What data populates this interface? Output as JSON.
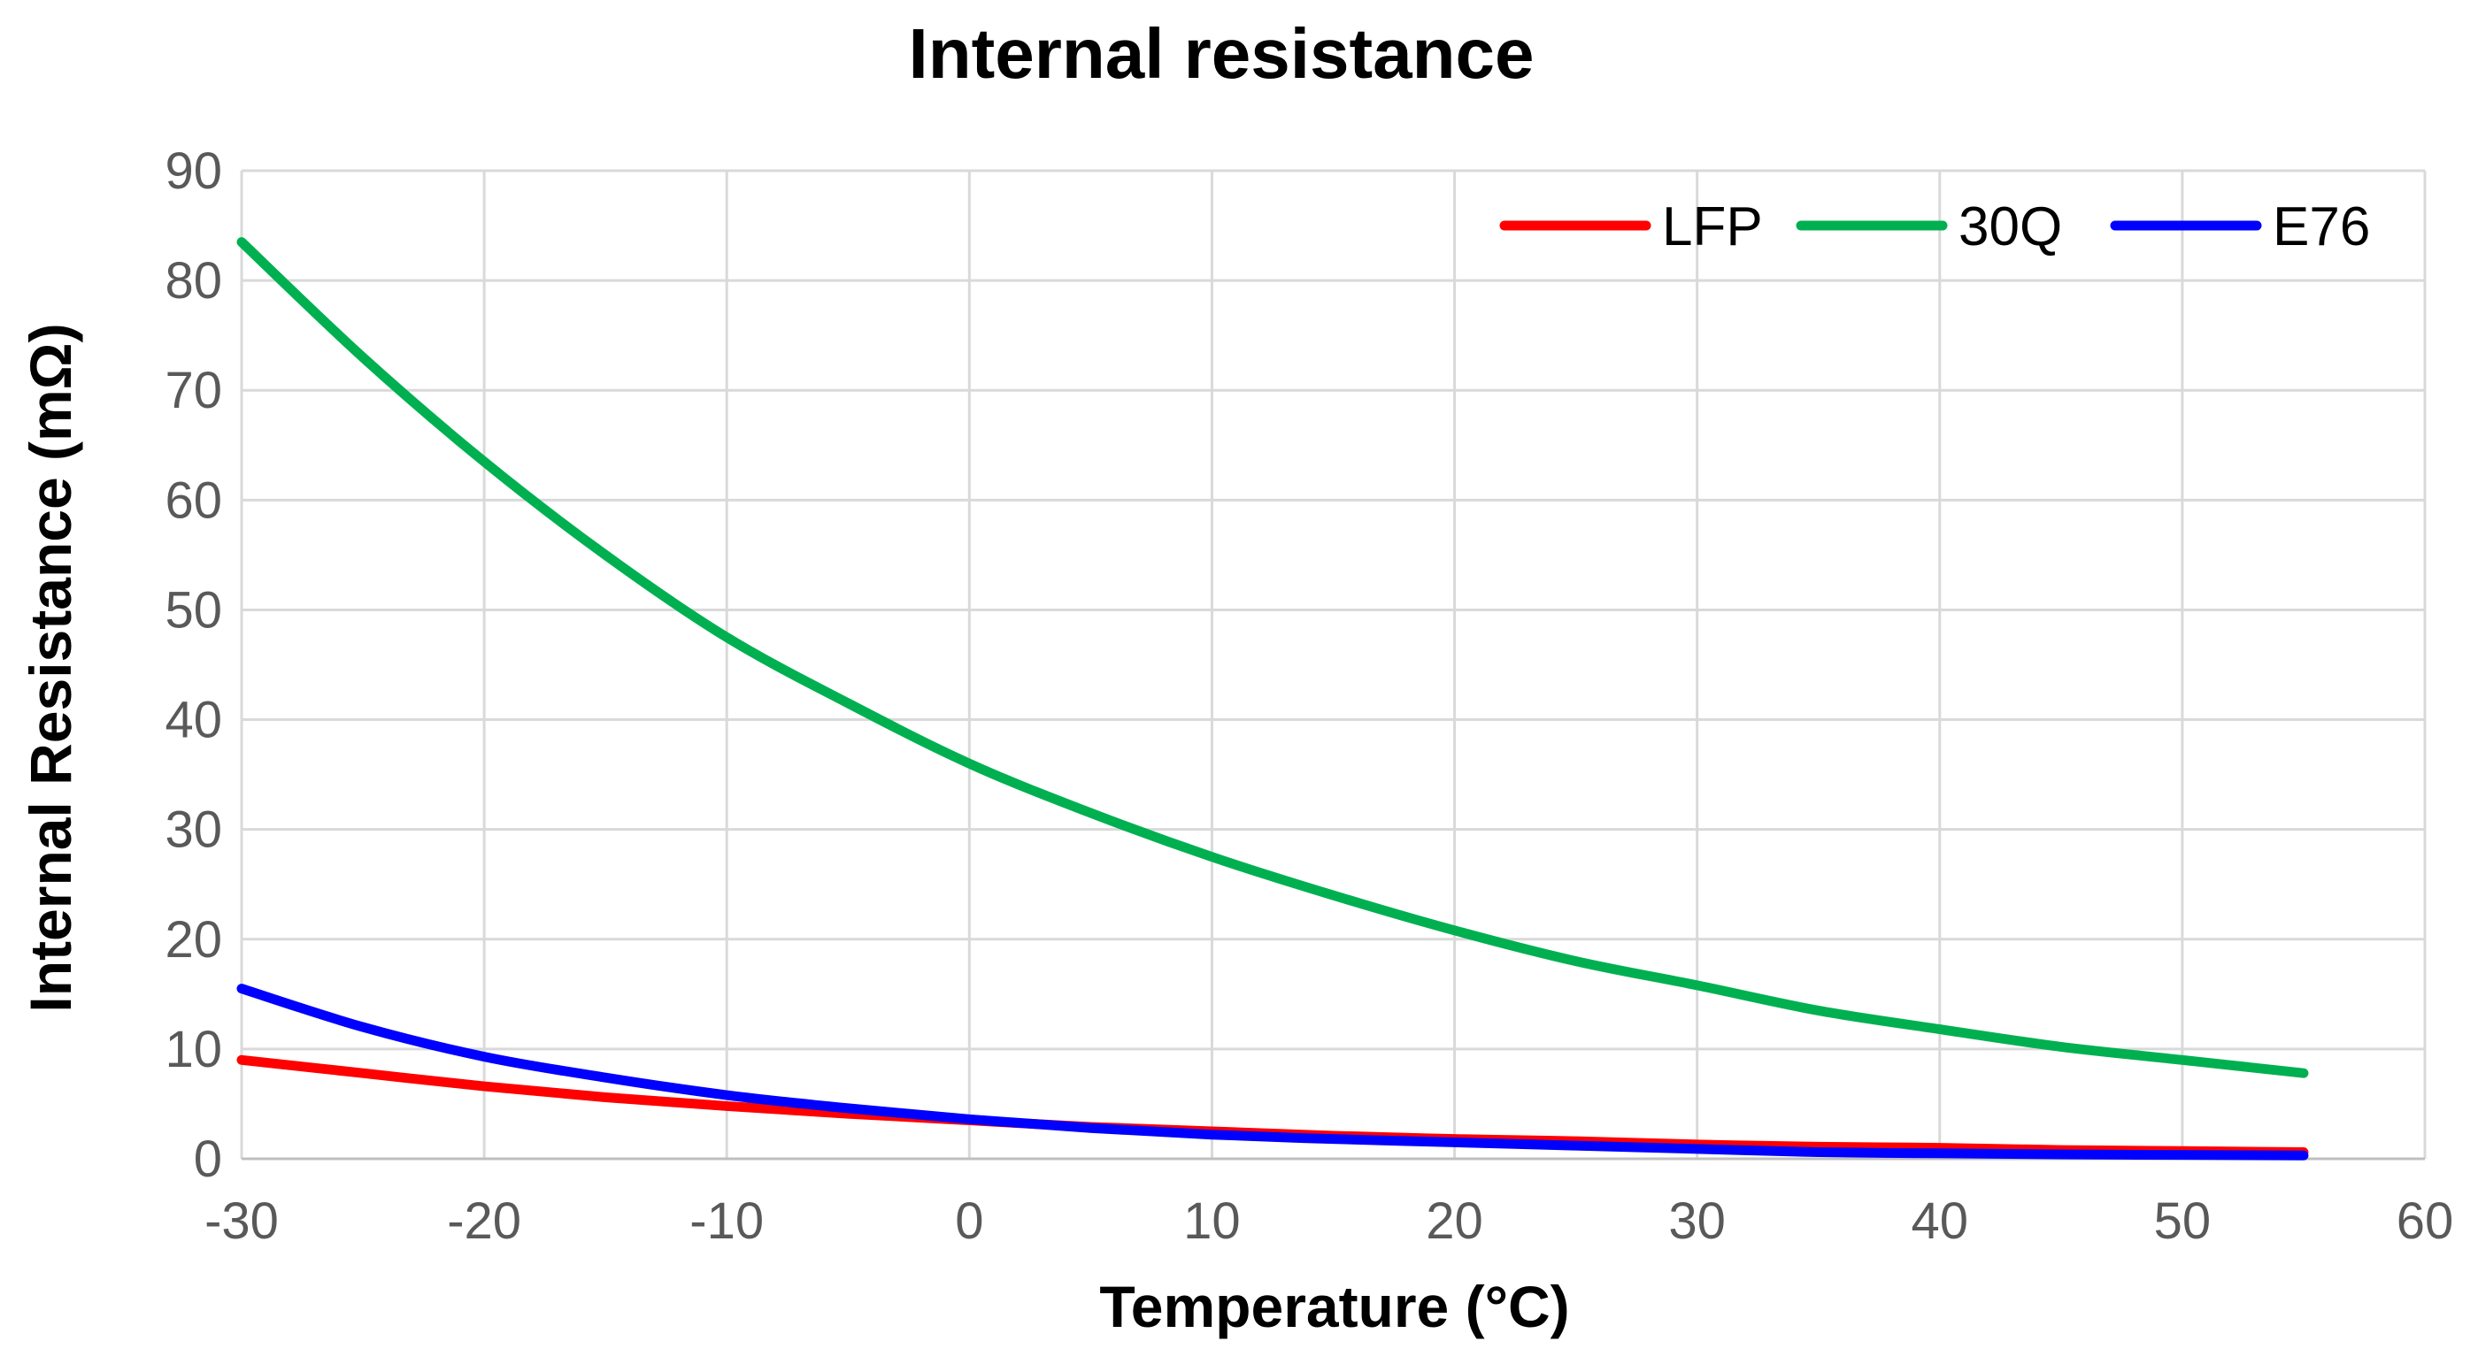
{
  "chart_data": {
    "type": "line",
    "title": "Internal resistance",
    "xlabel": "Temperature (°C)",
    "ylabel": "Internal Resistance (mΩ)",
    "xlim": [
      -30,
      60
    ],
    "ylim": [
      0,
      90
    ],
    "xticks": [
      -30,
      -20,
      -10,
      0,
      10,
      20,
      30,
      40,
      50,
      60
    ],
    "yticks": [
      0,
      10,
      20,
      30,
      40,
      50,
      60,
      70,
      80,
      90
    ],
    "grid": true,
    "legend_position": "top-right",
    "x": [
      -30,
      -25,
      -20,
      -15,
      -10,
      -5,
      0,
      5,
      10,
      15,
      20,
      25,
      30,
      35,
      40,
      45,
      50,
      55
    ],
    "series": [
      {
        "name": "LFP",
        "color": "#ff0000",
        "values": [
          9.0,
          7.8,
          6.6,
          5.6,
          4.8,
          4.1,
          3.5,
          2.9,
          2.5,
          2.1,
          1.8,
          1.6,
          1.3,
          1.1,
          1.0,
          0.8,
          0.7,
          0.6
        ]
      },
      {
        "name": "30Q",
        "color": "#00b050",
        "values": [
          83.5,
          73,
          63.5,
          55,
          47.5,
          41.5,
          36,
          31.5,
          27.5,
          24,
          20.8,
          18,
          15.8,
          13.5,
          11.8,
          10.2,
          9.0,
          7.8
        ]
      },
      {
        "name": "E76",
        "color": "#0000ff",
        "values": [
          15.5,
          12.0,
          9.3,
          7.4,
          5.8,
          4.6,
          3.6,
          2.8,
          2.2,
          1.8,
          1.5,
          1.2,
          0.9,
          0.6,
          0.5,
          0.4,
          0.35,
          0.3
        ]
      }
    ]
  }
}
